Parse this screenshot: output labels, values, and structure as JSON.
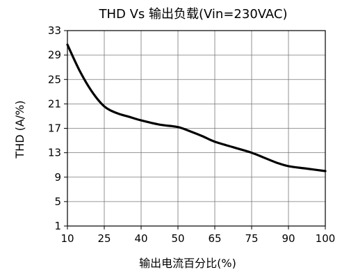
{
  "chart_data": {
    "type": "line",
    "title": "THD  Vs 输出负载(Vin=230VAC)",
    "xlabel": "输出电流百分比(%)",
    "ylabel": "THD (A/%)",
    "x_ticks": [
      10,
      25,
      40,
      50,
      65,
      75,
      90,
      100
    ],
    "y_ticks": [
      1,
      5,
      9,
      13,
      17,
      21,
      25,
      29,
      33
    ],
    "ylim": [
      1,
      33
    ],
    "grid": true,
    "series": [
      {
        "color": "#000000",
        "points": [
          {
            "x": 10,
            "y": 30.7
          },
          {
            "x": 15,
            "y": 26.4
          },
          {
            "x": 20,
            "y": 23.0
          },
          {
            "x": 25,
            "y": 20.6
          },
          {
            "x": 30,
            "y": 19.5
          },
          {
            "x": 35,
            "y": 18.9
          },
          {
            "x": 40,
            "y": 18.3
          },
          {
            "x": 45,
            "y": 17.6
          },
          {
            "x": 50,
            "y": 17.2
          },
          {
            "x": 55,
            "y": 16.5
          },
          {
            "x": 60,
            "y": 15.7
          },
          {
            "x": 65,
            "y": 14.8
          },
          {
            "x": 70,
            "y": 13.9
          },
          {
            "x": 75,
            "y": 13.0
          },
          {
            "x": 80,
            "y": 12.2
          },
          {
            "x": 85,
            "y": 11.4
          },
          {
            "x": 90,
            "y": 10.8
          },
          {
            "x": 95,
            "y": 10.4
          },
          {
            "x": 100,
            "y": 10.0
          }
        ]
      }
    ]
  }
}
